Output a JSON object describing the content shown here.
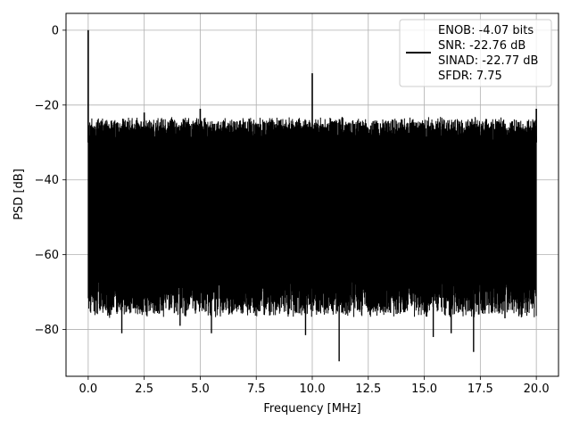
{
  "chart_data": {
    "type": "line",
    "title": "",
    "xlabel": "Frequency [MHz]",
    "ylabel": "PSD [dB]",
    "xlim": [
      -0.99,
      20.99
    ],
    "ylim": [
      -92.5,
      4.5
    ],
    "xticks": [
      0.0,
      2.5,
      5.0,
      7.5,
      10.0,
      12.5,
      15.0,
      17.5,
      20.0
    ],
    "xtick_labels": [
      "0.0",
      "2.5",
      "5.0",
      "7.5",
      "10.0",
      "12.5",
      "15.0",
      "17.5",
      "20.0"
    ],
    "yticks": [
      0,
      -20,
      -40,
      -60,
      -80
    ],
    "ytick_labels": [
      "0",
      "−20",
      "−40",
      "−60",
      "−80"
    ],
    "grid": true,
    "line_color": "#000000",
    "noise_band": {
      "x_start": 0.0,
      "x_end": 20.0,
      "top_min": -29,
      "top_max": -23,
      "bottom_min": -77,
      "bottom_max": -66
    },
    "peaks": [
      {
        "x": 0.0,
        "y": 0.0
      },
      {
        "x": 2.5,
        "y": -22
      },
      {
        "x": 5.0,
        "y": -21
      },
      {
        "x": 10.0,
        "y": -11.5
      },
      {
        "x": 20.0,
        "y": -21
      }
    ],
    "dips": [
      {
        "x": 1.5,
        "y": -81
      },
      {
        "x": 4.1,
        "y": -79
      },
      {
        "x": 5.5,
        "y": -81
      },
      {
        "x": 9.7,
        "y": -81.5
      },
      {
        "x": 11.2,
        "y": -88.5
      },
      {
        "x": 15.4,
        "y": -82
      },
      {
        "x": 16.2,
        "y": -81
      },
      {
        "x": 17.2,
        "y": -86
      },
      {
        "x": 18.6,
        "y": -77
      }
    ],
    "legend": {
      "position": "upper right",
      "entries": [
        "ENOB: -4.07 bits",
        "SNR: -22.76 dB",
        "SINAD: -22.77 dB",
        "SFDR: 7.75"
      ]
    }
  }
}
